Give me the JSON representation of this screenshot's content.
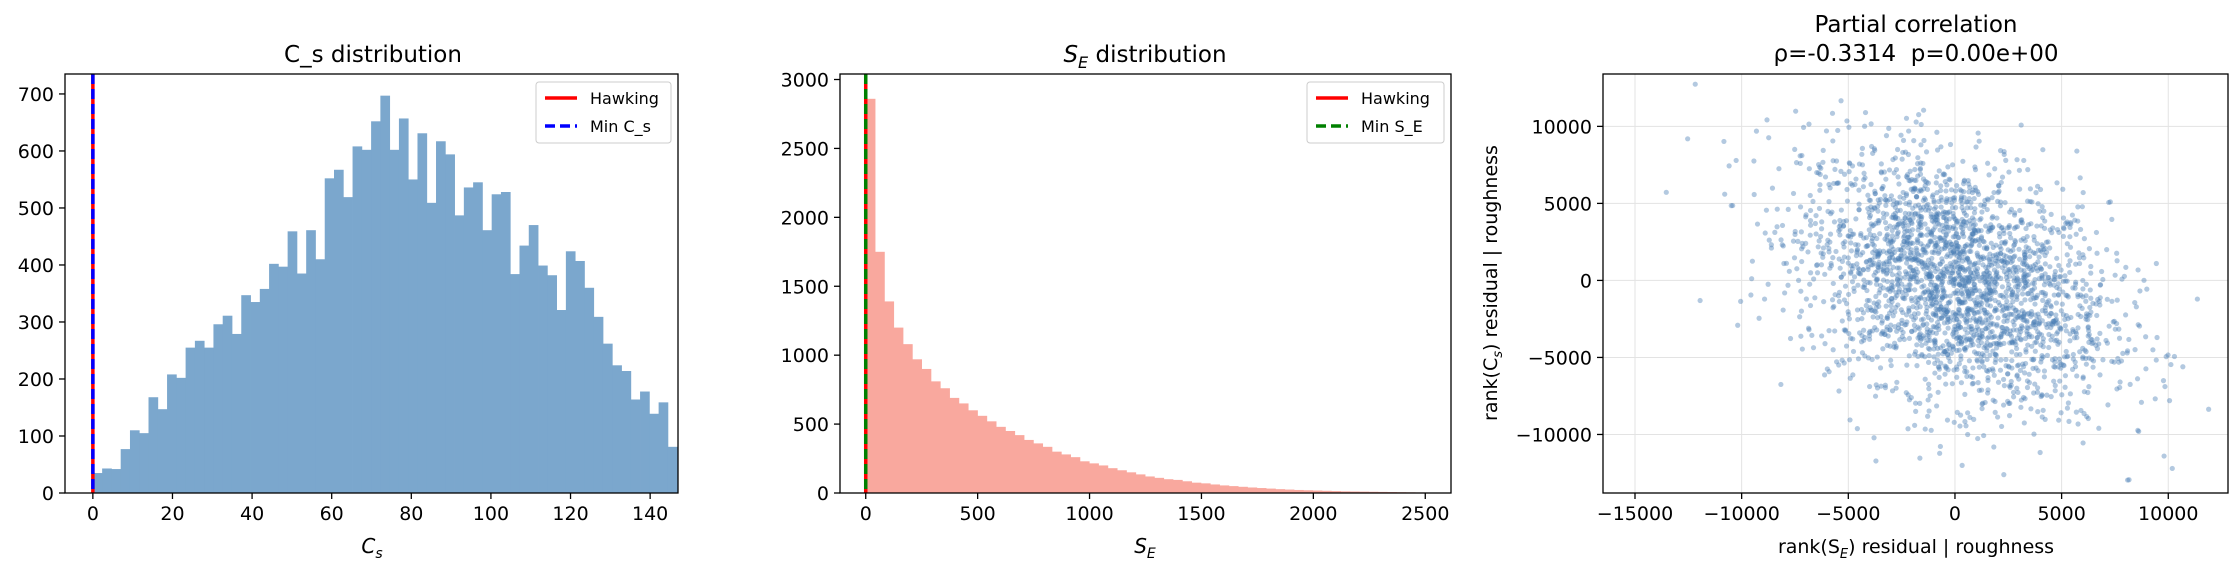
{
  "chart_data": [
    {
      "type": "bar",
      "title": "C_s distribution",
      "xlabel": "C",
      "xlabel_sub": "s",
      "ylabel": "",
      "xlim": [
        -7,
        147
      ],
      "ylim": [
        0,
        735
      ],
      "xticks": [
        0,
        20,
        40,
        60,
        80,
        100,
        120,
        140
      ],
      "yticks": [
        0,
        100,
        200,
        300,
        400,
        500,
        600,
        700
      ],
      "bin_start": 0,
      "bin_width": 2.33,
      "values": [
        35,
        43,
        42,
        77,
        110,
        105,
        168,
        147,
        208,
        202,
        255,
        267,
        255,
        296,
        311,
        279,
        347,
        335,
        358,
        402,
        397,
        459,
        385,
        461,
        410,
        552,
        567,
        519,
        608,
        602,
        652,
        697,
        602,
        657,
        550,
        631,
        509,
        617,
        594,
        487,
        536,
        545,
        461,
        524,
        528,
        384,
        434,
        470,
        399,
        382,
        321,
        424,
        407,
        360,
        309,
        262,
        224,
        214,
        164,
        178,
        139,
        159,
        81
      ],
      "bar_color": "#7ba7cd",
      "legend": [
        {
          "label": "Hawking",
          "color": "#ff0000",
          "style": "solid"
        },
        {
          "label": "Min C_s",
          "color": "#0000ff",
          "style": "dashed"
        }
      ],
      "legend_position": "top-right",
      "vlines": [
        {
          "x": 0,
          "color": "#ff0000",
          "style": "solid"
        },
        {
          "x": 0,
          "color": "#0000ff",
          "style": "dashed"
        }
      ]
    },
    {
      "type": "bar",
      "title_main": "S",
      "title_sub": "E",
      "title_rest": " distribution",
      "xlabel": "S",
      "xlabel_sub": "E",
      "ylabel": "",
      "xlim": [
        -115,
        2615
      ],
      "ylim": [
        0,
        3040
      ],
      "xticks": [
        0,
        500,
        1000,
        1500,
        2000,
        2500
      ],
      "yticks": [
        0,
        500,
        1000,
        1500,
        2000,
        2500,
        3000
      ],
      "bin_start": 0,
      "bin_width": 41.6,
      "values": [
        2860,
        1750,
        1390,
        1200,
        1080,
        970,
        900,
        810,
        760,
        690,
        650,
        600,
        560,
        520,
        480,
        450,
        420,
        385,
        360,
        335,
        300,
        280,
        260,
        230,
        215,
        200,
        180,
        165,
        150,
        135,
        120,
        110,
        100,
        95,
        85,
        75,
        70,
        62,
        55,
        50,
        45,
        40,
        36,
        32,
        28,
        25,
        22,
        20,
        18,
        16,
        14,
        12,
        11,
        10,
        9,
        8,
        7,
        6,
        5,
        4
      ],
      "bar_color": "#f9a89e",
      "legend": [
        {
          "label": "Hawking",
          "color": "#ff0000",
          "style": "solid"
        },
        {
          "label": "Min S_E",
          "color": "#008000",
          "style": "dashed"
        }
      ],
      "legend_position": "top-right",
      "vlines": [
        {
          "x": 0,
          "color": "#ff0000",
          "style": "solid"
        },
        {
          "x": 0,
          "color": "#008000",
          "style": "dashed"
        }
      ]
    },
    {
      "type": "scatter",
      "title_line1": "Partial correlation",
      "title_line2": "ρ=-0.3314  p=0.00e+00",
      "xlabel_pre": "rank(S",
      "xlabel_sub": "E",
      "xlabel_post": ") residual | roughness",
      "ylabel_pre": "rank(C",
      "ylabel_sub": "s",
      "ylabel_post": ") residual | roughness",
      "xlim": [
        -16500,
        12800
      ],
      "ylim": [
        -13800,
        13400
      ],
      "xticks": [
        -15000,
        -10000,
        -5000,
        0,
        5000,
        10000
      ],
      "yticks": [
        -10000,
        -5000,
        0,
        5000,
        10000
      ],
      "grid": true,
      "point_color": "#4a7fb5",
      "n_points": 2600,
      "correlation": -0.3314
    }
  ]
}
